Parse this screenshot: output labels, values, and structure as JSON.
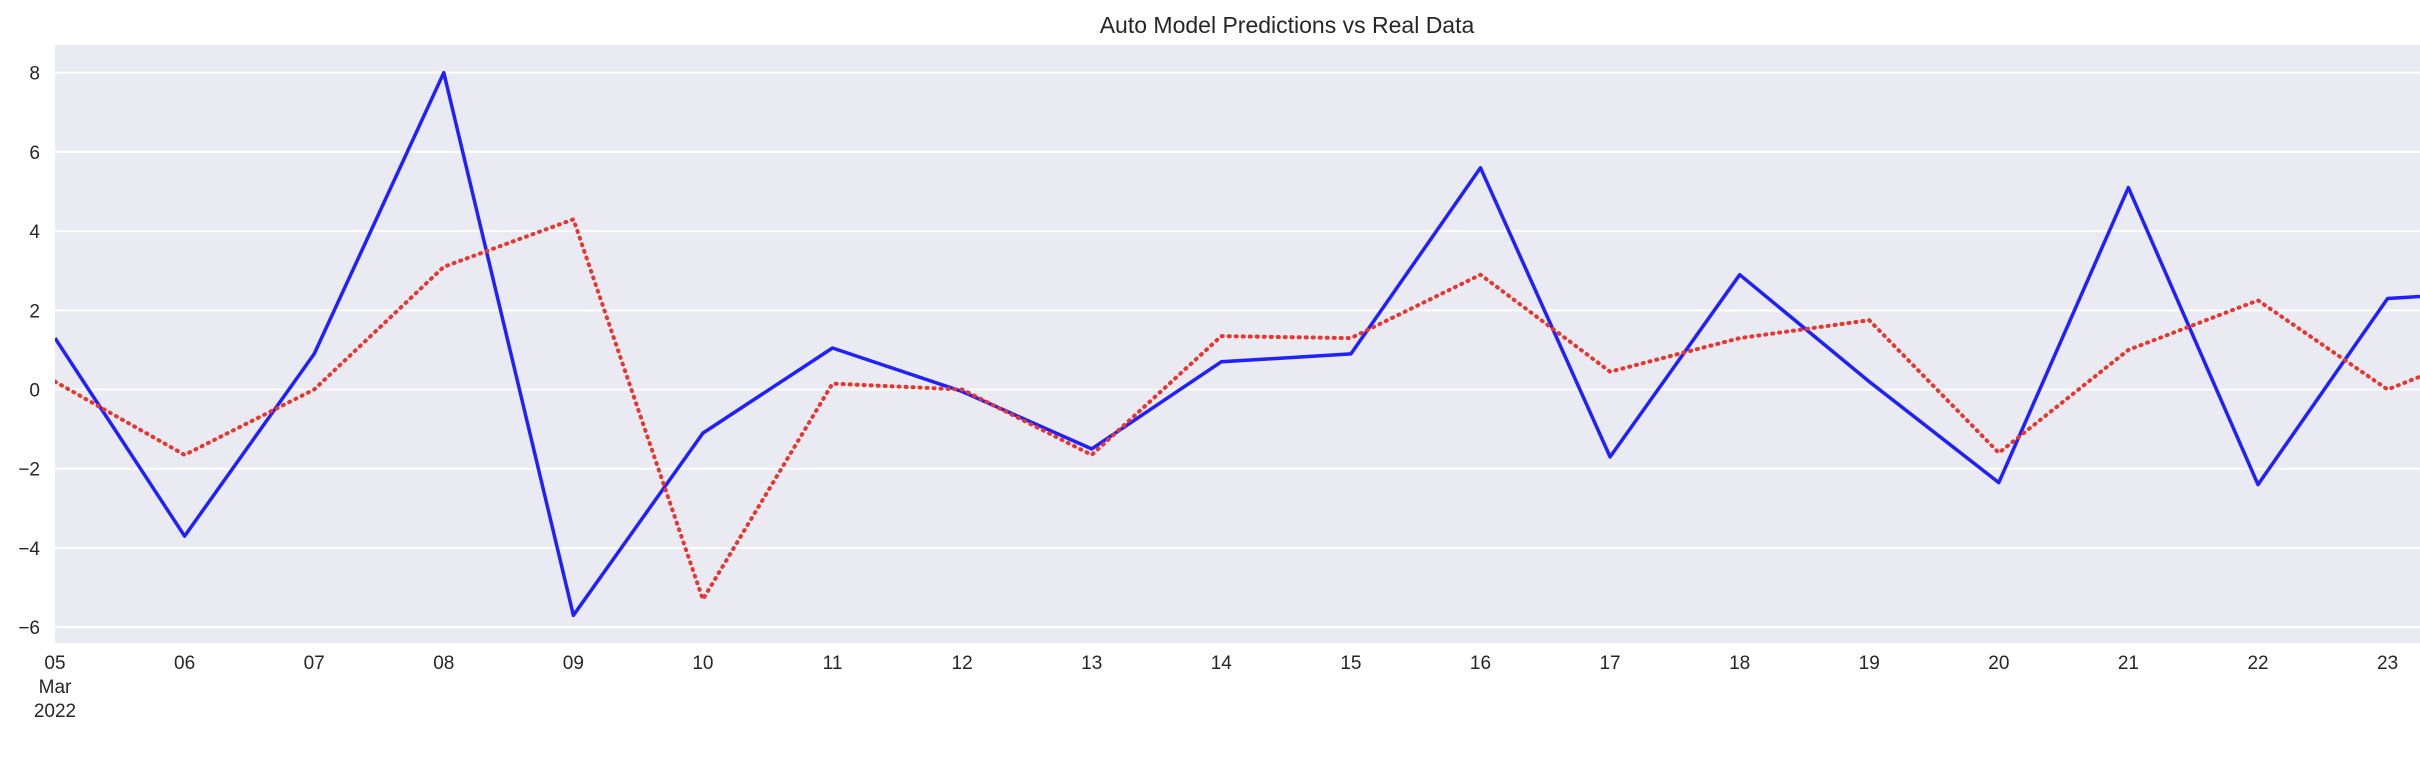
{
  "chart_data": {
    "type": "line",
    "title": "Auto Model Predictions vs Real Data",
    "xlabel": "",
    "ylabel": "",
    "x_ticks": [
      "05",
      "06",
      "07",
      "08",
      "09",
      "10",
      "11",
      "12",
      "13",
      "14",
      "15",
      "16",
      "17",
      "18",
      "19",
      "20",
      "21",
      "22",
      "23"
    ],
    "x_first_tick_extra": [
      "Mar",
      "2022"
    ],
    "x": [
      "2022-03-05",
      "2022-03-06",
      "2022-03-07",
      "2022-03-08",
      "2022-03-09",
      "2022-03-10",
      "2022-03-11",
      "2022-03-12",
      "2022-03-13",
      "2022-03-14",
      "2022-03-15",
      "2022-03-16",
      "2022-03-17",
      "2022-03-18",
      "2022-03-19",
      "2022-03-20",
      "2022-03-21",
      "2022-03-22",
      "2022-03-23",
      "2022-03-24"
    ],
    "xlim": [
      "2022-03-05",
      "2022-03-23 06:00"
    ],
    "ylim": [
      -6.4,
      8.7
    ],
    "y_ticks": [
      -6,
      -4,
      -2,
      0,
      2,
      4,
      6,
      8
    ],
    "grid": true,
    "series": [
      {
        "color": "#1f1fff",
        "style": "solid",
        "values": [
          1.3,
          -3.7,
          0.9,
          8.0,
          -5.7,
          -1.1,
          1.05,
          -0.05,
          -1.5,
          0.7,
          0.9,
          5.6,
          -1.7,
          2.9,
          0.2,
          -2.35,
          5.1,
          -2.4,
          2.3,
          2.5
        ]
      },
      {
        "color": "#e8352e",
        "style": "dotted",
        "values": [
          0.2,
          -1.65,
          0.0,
          3.1,
          4.3,
          -5.3,
          0.15,
          0.0,
          -1.65,
          1.35,
          1.3,
          2.9,
          0.45,
          1.3,
          1.75,
          -1.6,
          1.0,
          2.25,
          0.0,
          1.3
        ]
      }
    ]
  }
}
